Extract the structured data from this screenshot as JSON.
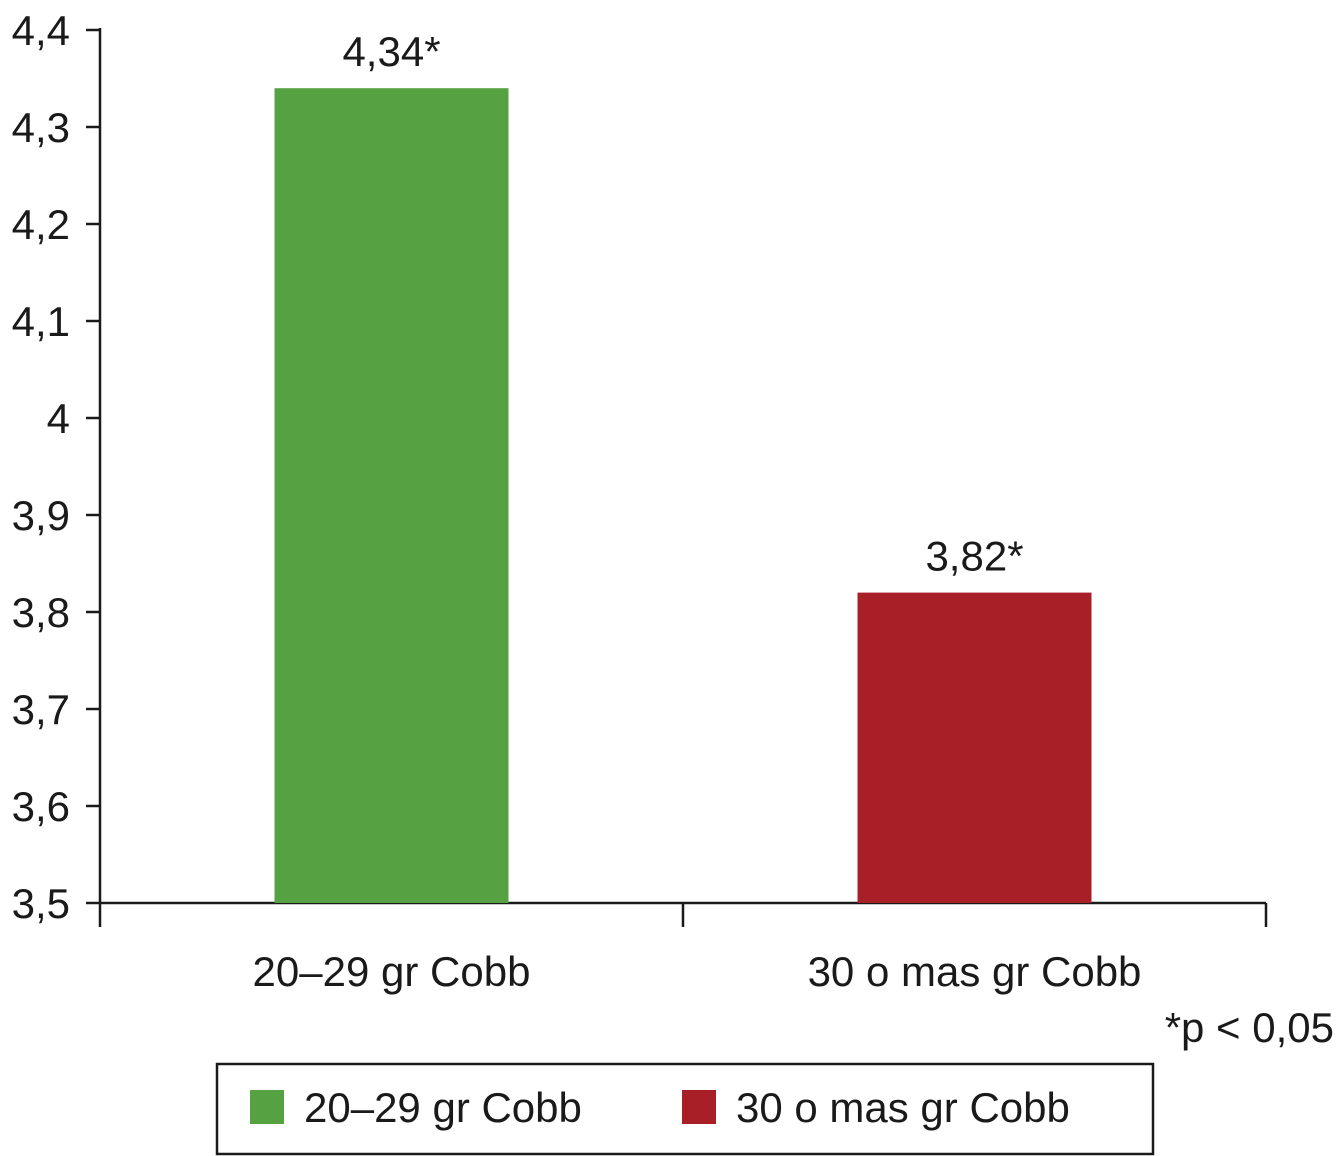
{
  "chart_data": {
    "type": "bar",
    "categories": [
      "20–29 gr Cobb",
      "30 o mas gr Cobb"
    ],
    "values": [
      4.34,
      3.82
    ],
    "data_labels": [
      "4,34*",
      "3,82*"
    ],
    "colors": [
      "#56a243",
      "#a81f28"
    ],
    "ylim": [
      3.5,
      4.4
    ],
    "yticks": [
      3.5,
      3.6,
      3.7,
      3.8,
      3.9,
      4.0,
      4.1,
      4.2,
      4.3,
      4.4
    ],
    "ytick_labels": [
      "3,5",
      "3,6",
      "3,7",
      "3,8",
      "3,9",
      "4",
      "4,1",
      "4,2",
      "4,3",
      "4,4"
    ],
    "title": "",
    "xlabel": "",
    "ylabel": "",
    "grid": false,
    "legend": {
      "placement": "bottom",
      "entries": [
        "20–29 gr Cobb",
        "30 o mas gr Cobb"
      ]
    },
    "footnote": "*p < 0,05"
  }
}
